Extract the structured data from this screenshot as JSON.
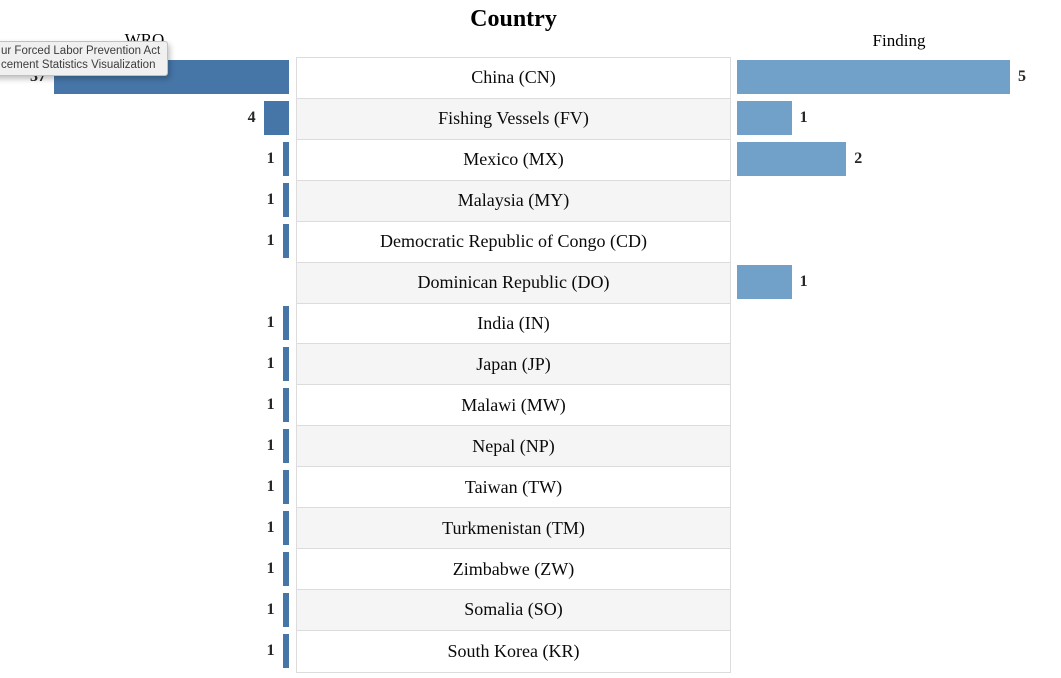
{
  "tooltip": {
    "line1": "ur Forced Labor Prevention Act",
    "line2": "cement Statistics Visualization"
  },
  "headers": {
    "left": "WRO",
    "center": "Country",
    "right": "Finding"
  },
  "colors": {
    "wro_bar": "#4676a8",
    "finding_bar": "#71a0c9",
    "row_alt": "#f5f5f5",
    "row_border": "#dcdcdc"
  },
  "chart_data": {
    "type": "bar",
    "orientation": "horizontal-diverging",
    "title": "Country",
    "left_axis_label": "WRO",
    "right_axis_label": "Finding",
    "categories": [
      "China (CN)",
      "Fishing Vessels (FV)",
      "Mexico (MX)",
      "Malaysia (MY)",
      "Democratic Republic of Congo (CD)",
      "Dominican Republic (DO)",
      "India (IN)",
      "Japan (JP)",
      "Malawi (MW)",
      "Nepal (NP)",
      "Taiwan (TW)",
      "Turkmenistan (TM)",
      "Zimbabwe (ZW)",
      "Somalia (SO)",
      "South Korea (KR)"
    ],
    "series": [
      {
        "name": "WRO",
        "side": "left",
        "max": 37,
        "values": [
          37,
          4,
          1,
          1,
          1,
          0,
          1,
          1,
          1,
          1,
          1,
          1,
          1,
          1,
          1
        ]
      },
      {
        "name": "Finding",
        "side": "right",
        "max": 5,
        "values": [
          5,
          1,
          2,
          0,
          0,
          1,
          0,
          0,
          0,
          0,
          0,
          0,
          0,
          0,
          0
        ]
      }
    ],
    "legend": "off",
    "grid": "off",
    "row_striping": true
  }
}
